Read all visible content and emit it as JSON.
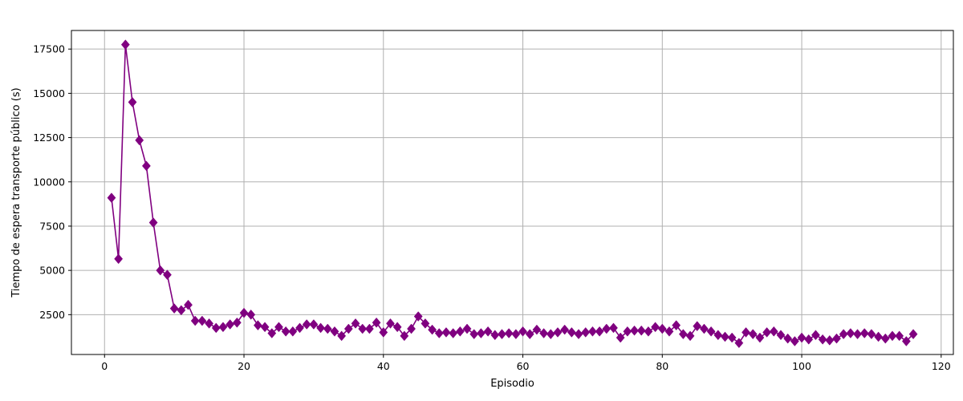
{
  "chart_data": {
    "type": "line",
    "title": "",
    "xlabel": "Episodio",
    "ylabel": "Tiempo de espera transporte público (s)",
    "xlim": [
      -4.75,
      121.75
    ],
    "ylim": [
      250,
      18550
    ],
    "xticks": [
      0,
      20,
      40,
      60,
      80,
      100,
      120
    ],
    "yticks": [
      2500,
      5000,
      7500,
      10000,
      12500,
      15000,
      17500
    ],
    "grid": true,
    "legend": "none",
    "series": [
      {
        "color": "#800080",
        "marker": "diamond",
        "x": [
          1,
          2,
          3,
          4,
          5,
          6,
          7,
          8,
          9,
          10,
          11,
          12,
          13,
          14,
          15,
          16,
          17,
          18,
          19,
          20,
          21,
          22,
          23,
          24,
          25,
          26,
          27,
          28,
          29,
          30,
          31,
          32,
          33,
          34,
          35,
          36,
          37,
          38,
          39,
          40,
          41,
          42,
          43,
          44,
          45,
          46,
          47,
          48,
          49,
          50,
          51,
          52,
          53,
          54,
          55,
          56,
          57,
          58,
          59,
          60,
          61,
          62,
          63,
          64,
          65,
          66,
          67,
          68,
          69,
          70,
          71,
          72,
          73,
          74,
          75,
          76,
          77,
          78,
          79,
          80,
          81,
          82,
          83,
          84,
          85,
          86,
          87,
          88,
          89,
          90,
          91,
          92,
          93,
          94,
          95,
          96,
          97,
          98,
          99,
          100,
          101,
          102,
          103,
          104,
          105,
          106,
          107,
          108,
          109,
          110,
          111,
          112,
          113,
          114,
          115,
          116
        ],
        "y": [
          9100,
          5650,
          17750,
          14500,
          12350,
          10900,
          7700,
          5000,
          4750,
          2850,
          2750,
          3050,
          2150,
          2150,
          2000,
          1750,
          1800,
          1950,
          2050,
          2600,
          2500,
          1900,
          1800,
          1450,
          1800,
          1550,
          1550,
          1750,
          1950,
          1950,
          1750,
          1700,
          1550,
          1300,
          1700,
          2000,
          1700,
          1700,
          2050,
          1500,
          2000,
          1800,
          1300,
          1700,
          2400,
          2000,
          1650,
          1450,
          1500,
          1450,
          1550,
          1700,
          1400,
          1450,
          1550,
          1350,
          1400,
          1450,
          1400,
          1550,
          1400,
          1650,
          1450,
          1400,
          1500,
          1650,
          1500,
          1400,
          1500,
          1550,
          1550,
          1700,
          1750,
          1200,
          1550,
          1600,
          1600,
          1550,
          1800,
          1700,
          1550,
          1900,
          1400,
          1300,
          1850,
          1700,
          1550,
          1350,
          1250,
          1200,
          900,
          1500,
          1400,
          1200,
          1500,
          1550,
          1350,
          1150,
          1000,
          1200,
          1100,
          1350,
          1100,
          1050,
          1150,
          1400,
          1450,
          1400,
          1450,
          1400,
          1250,
          1150,
          1300,
          1300,
          1000,
          1400
        ]
      }
    ]
  }
}
